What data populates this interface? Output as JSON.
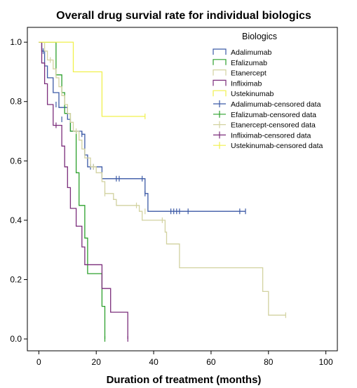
{
  "chart_data": {
    "type": "line",
    "subtype": "kaplan-meier-step",
    "title": "Overall drug survial rate for individual biologics",
    "xlabel": "Duration of treatment (months)",
    "ylabel": "",
    "xlim": [
      -4,
      104
    ],
    "ylim": [
      -0.04,
      1.05
    ],
    "xticks": [
      0,
      20,
      40,
      60,
      80,
      100
    ],
    "yticks": [
      0.0,
      0.2,
      0.4,
      0.6,
      0.8,
      1.0
    ],
    "xtick_labels": [
      "0",
      "20",
      "40",
      "60",
      "80",
      "100"
    ],
    "ytick_labels": [
      "0.0",
      "0.2",
      "0.4",
      "0.6",
      "0.8",
      "1.0"
    ],
    "grid": false,
    "legend": {
      "title": "Biologics",
      "placement": "top-right",
      "entries": [
        {
          "label": "Adalimumab",
          "series": "Adalimumab",
          "kind": "line"
        },
        {
          "label": "Efalizumab",
          "series": "Efalizumab",
          "kind": "line"
        },
        {
          "label": "Etanercept",
          "series": "Etanercept",
          "kind": "line"
        },
        {
          "label": "Infliximab",
          "series": "Infliximab",
          "kind": "line"
        },
        {
          "label": "Ustekinumab",
          "series": "Ustekinumab",
          "kind": "line"
        },
        {
          "label": "Adalimumab-censored data",
          "series": "Adalimumab",
          "kind": "censor"
        },
        {
          "label": "Efalizumab-censored data",
          "series": "Efalizumab",
          "kind": "censor"
        },
        {
          "label": "Etanercept-censored data",
          "series": "Etanercept",
          "kind": "censor"
        },
        {
          "label": "Infliximab-censored data",
          "series": "Infliximab",
          "kind": "censor"
        },
        {
          "label": "Ustekinumab-censored data",
          "series": "Ustekinumab",
          "kind": "censor"
        }
      ]
    },
    "series": [
      {
        "name": "Adalimumab",
        "color": "#3c5aa6",
        "steps": [
          [
            0,
            1.0
          ],
          [
            1,
            0.97
          ],
          [
            2,
            0.92
          ],
          [
            3,
            0.88
          ],
          [
            5,
            0.83
          ],
          [
            7,
            0.78
          ],
          [
            10,
            0.74
          ],
          [
            11,
            0.7
          ],
          [
            15,
            0.69
          ],
          [
            16,
            0.62
          ],
          [
            17,
            0.58
          ],
          [
            22,
            0.54
          ],
          [
            37,
            0.49
          ],
          [
            38,
            0.43
          ],
          [
            72,
            0.43
          ]
        ],
        "censored": [
          [
            1.5,
            0.97
          ],
          [
            6,
            0.79
          ],
          [
            8,
            0.74
          ],
          [
            15,
            0.69
          ],
          [
            18,
            0.58
          ],
          [
            19,
            0.58
          ],
          [
            27,
            0.54
          ],
          [
            28,
            0.54
          ],
          [
            36,
            0.54
          ],
          [
            37,
            0.49
          ],
          [
            46,
            0.43
          ],
          [
            47,
            0.43
          ],
          [
            48,
            0.43
          ],
          [
            49,
            0.43
          ],
          [
            52,
            0.43
          ],
          [
            70,
            0.43
          ],
          [
            72,
            0.43
          ]
        ]
      },
      {
        "name": "Efalizumab",
        "color": "#2ca02c",
        "steps": [
          [
            0,
            1.0
          ],
          [
            6,
            0.89
          ],
          [
            8,
            0.83
          ],
          [
            9,
            0.76
          ],
          [
            11,
            0.7
          ],
          [
            13,
            0.56
          ],
          [
            14,
            0.45
          ],
          [
            16,
            0.34
          ],
          [
            17,
            0.22
          ],
          [
            22,
            0.11
          ],
          [
            23,
            0.0
          ]
        ],
        "censored": [
          [
            23,
            0.0
          ]
        ]
      },
      {
        "name": "Etanercept",
        "color": "#d2d2a0",
        "steps": [
          [
            0,
            1.0
          ],
          [
            2,
            0.97
          ],
          [
            3,
            0.94
          ],
          [
            5,
            0.91
          ],
          [
            6,
            0.88
          ],
          [
            7,
            0.85
          ],
          [
            8,
            0.82
          ],
          [
            9,
            0.79
          ],
          [
            10,
            0.76
          ],
          [
            11,
            0.73
          ],
          [
            12,
            0.7
          ],
          [
            14,
            0.67
          ],
          [
            15,
            0.64
          ],
          [
            16,
            0.61
          ],
          [
            18,
            0.58
          ],
          [
            20,
            0.56
          ],
          [
            22,
            0.53
          ],
          [
            23,
            0.49
          ],
          [
            26,
            0.47
          ],
          [
            27,
            0.45
          ],
          [
            35,
            0.43
          ],
          [
            36,
            0.4
          ],
          [
            44,
            0.36
          ],
          [
            44.5,
            0.32
          ],
          [
            49,
            0.24
          ],
          [
            72,
            0.24
          ],
          [
            78,
            0.16
          ],
          [
            80,
            0.08
          ],
          [
            86,
            0.08
          ]
        ],
        "censored": [
          [
            4,
            0.94
          ],
          [
            9,
            0.8
          ],
          [
            13,
            0.7
          ],
          [
            19,
            0.58
          ],
          [
            23,
            0.49
          ],
          [
            34,
            0.45
          ],
          [
            37,
            0.43
          ],
          [
            43,
            0.4
          ],
          [
            86,
            0.08
          ]
        ]
      },
      {
        "name": "Infliximab",
        "color": "#7b2d7b",
        "steps": [
          [
            0,
            1.0
          ],
          [
            1,
            0.93
          ],
          [
            2,
            0.86
          ],
          [
            3,
            0.79
          ],
          [
            5,
            0.72
          ],
          [
            8,
            0.65
          ],
          [
            9,
            0.58
          ],
          [
            10,
            0.51
          ],
          [
            11,
            0.44
          ],
          [
            13,
            0.38
          ],
          [
            15,
            0.31
          ],
          [
            16,
            0.25
          ],
          [
            22,
            0.17
          ],
          [
            25,
            0.09
          ],
          [
            31,
            0.0
          ]
        ],
        "censored": [
          [
            6,
            0.72
          ],
          [
            31,
            0.0
          ]
        ]
      },
      {
        "name": "Ustekinumab",
        "color": "#f0f04c",
        "steps": [
          [
            0,
            1.0
          ],
          [
            12,
            0.9
          ],
          [
            22,
            0.75
          ],
          [
            37,
            0.75
          ]
        ],
        "censored": [
          [
            37,
            0.75
          ]
        ]
      }
    ]
  }
}
